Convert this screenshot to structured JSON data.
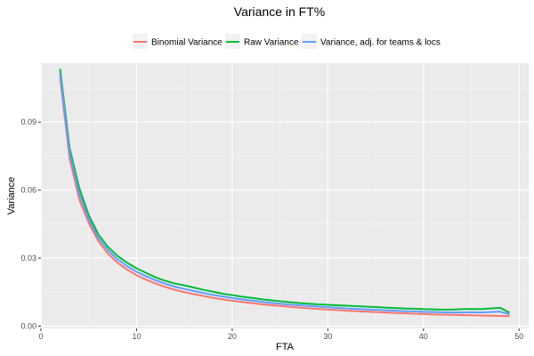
{
  "chart_data": {
    "type": "line",
    "title": "Variance in FT%",
    "xlabel": "FTA",
    "ylabel": "Variance",
    "xlim": [
      0,
      51
    ],
    "ylim": [
      -0.001,
      0.116
    ],
    "x_ticks": [
      0,
      10,
      20,
      30,
      40,
      50
    ],
    "x_tick_labels": [
      "0",
      "10",
      "20",
      "30",
      "40",
      "50"
    ],
    "y_ticks": [
      0.0,
      0.03,
      0.06,
      0.09
    ],
    "y_tick_labels": [
      "0.00",
      "0.03",
      "0.06",
      "0.09"
    ],
    "grid": true,
    "legend_position": "top",
    "x": [
      2,
      3,
      4,
      5,
      6,
      7,
      8,
      9,
      10,
      11,
      12,
      13,
      14,
      15,
      16,
      17,
      18,
      19,
      20,
      21,
      22,
      23,
      24,
      25,
      26,
      27,
      28,
      29,
      30,
      31,
      32,
      33,
      34,
      35,
      36,
      37,
      38,
      39,
      40,
      41,
      42,
      43,
      44,
      45,
      46,
      47,
      48,
      49
    ],
    "series": [
      {
        "name": "Binomial Variance",
        "color": "#F8766D",
        "values": [
          0.1095,
          0.074,
          0.056,
          0.0455,
          0.0375,
          0.032,
          0.028,
          0.025,
          0.0225,
          0.0205,
          0.0188,
          0.0173,
          0.016,
          0.015,
          0.0141,
          0.0133,
          0.0125,
          0.0118,
          0.0112,
          0.0107,
          0.0102,
          0.0097,
          0.0093,
          0.0089,
          0.0085,
          0.0082,
          0.0079,
          0.0076,
          0.0073,
          0.0071,
          0.0068,
          0.0066,
          0.0064,
          0.0062,
          0.006,
          0.0058,
          0.0057,
          0.0055,
          0.0054,
          0.0052,
          0.0051,
          0.005,
          0.0049,
          0.0048,
          0.0047,
          0.0046,
          0.0045,
          0.0044
        ]
      },
      {
        "name": "Raw Variance",
        "color": "#00BA38",
        "values": [
          0.1135,
          0.0785,
          0.061,
          0.049,
          0.0405,
          0.035,
          0.031,
          0.028,
          0.0255,
          0.0235,
          0.0215,
          0.02,
          0.0188,
          0.018,
          0.017,
          0.016,
          0.0152,
          0.0143,
          0.0137,
          0.013,
          0.0125,
          0.0119,
          0.0114,
          0.011,
          0.0106,
          0.0102,
          0.0099,
          0.0096,
          0.0094,
          0.0092,
          0.009,
          0.0088,
          0.0086,
          0.0084,
          0.0082,
          0.008,
          0.0078,
          0.0077,
          0.0075,
          0.0074,
          0.0073,
          0.0073,
          0.0075,
          0.0076,
          0.0075,
          0.0078,
          0.0081,
          0.006
        ]
      },
      {
        "name": "Variance, adj. for teams & locs",
        "color": "#619CFF",
        "values": [
          0.1115,
          0.0765,
          0.0585,
          0.0472,
          0.039,
          0.0335,
          0.0295,
          0.0265,
          0.024,
          0.022,
          0.0202,
          0.0187,
          0.0174,
          0.0164,
          0.0155,
          0.0146,
          0.0138,
          0.0131,
          0.0124,
          0.0118,
          0.0113,
          0.0108,
          0.0103,
          0.0099,
          0.0095,
          0.0092,
          0.0089,
          0.0086,
          0.0083,
          0.0081,
          0.0078,
          0.0076,
          0.0074,
          0.0072,
          0.007,
          0.0068,
          0.0066,
          0.0065,
          0.0063,
          0.0062,
          0.0061,
          0.006,
          0.006,
          0.0061,
          0.006,
          0.0062,
          0.0064,
          0.0052
        ]
      }
    ]
  }
}
